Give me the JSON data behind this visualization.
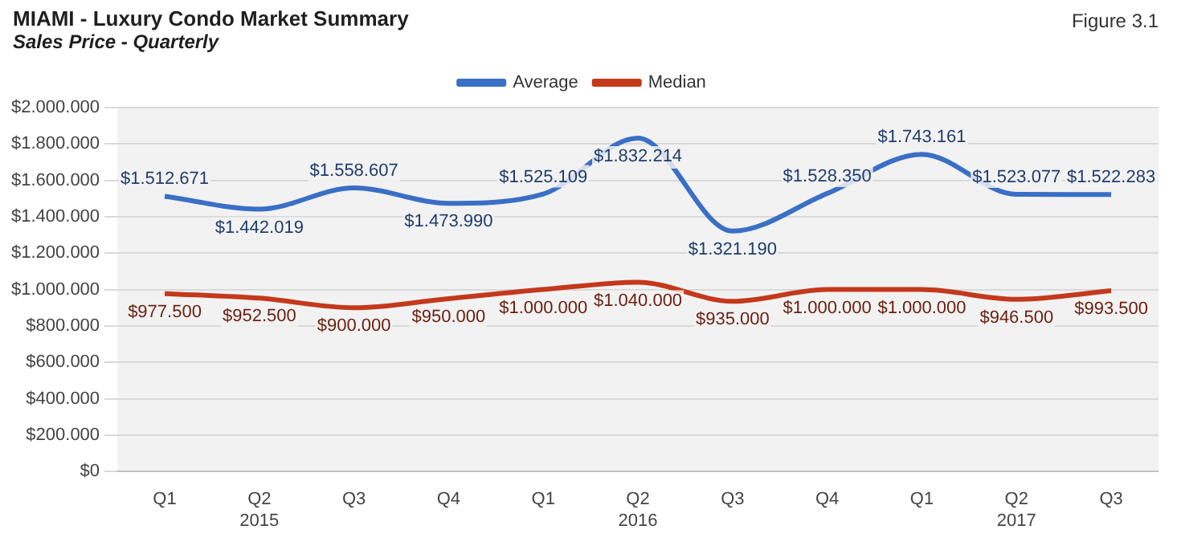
{
  "chart_data": {
    "type": "line",
    "title": "MIAMI - Luxury Condo Market Summary",
    "subtitle": "Sales Price - Quarterly",
    "annotations": [
      "Figure 3.1"
    ],
    "categories": [
      "Q1",
      "Q2\n2015",
      "Q3",
      "Q4",
      "Q1",
      "Q2\n2016",
      "Q3",
      "Q4",
      "Q1",
      "Q2\n2017",
      "Q3"
    ],
    "series": [
      {
        "name": "Average",
        "color": "#3a6fc6",
        "values": [
          1512671,
          1442019,
          1558607,
          1473990,
          1525109,
          1832214,
          1321190,
          1528350,
          1743161,
          1523077,
          1522283
        ],
        "value_labels": [
          "$1.512.671",
          "$1.442.019",
          "$1.558.607",
          "$1.473.990",
          "$1.525.109",
          "$1.832.214",
          "$1.321.190",
          "$1.528.350",
          "$1.743.161",
          "$1.523.077",
          "$1.522.283"
        ]
      },
      {
        "name": "Median",
        "color": "#c4391b",
        "values": [
          977500,
          952500,
          900000,
          950000,
          1000000,
          1040000,
          935000,
          1000000,
          1000000,
          946500,
          993500
        ],
        "value_labels": [
          "$977.500",
          "$952.500",
          "$900.000",
          "$950.000",
          "$1.000.000",
          "$1.040.000",
          "$935.000",
          "$1.000.000",
          "$1.000.000",
          "$946.500",
          "$993.500"
        ]
      }
    ],
    "ylim": [
      0,
      2000000
    ],
    "yticks": [
      {
        "value": 0,
        "label": "$0"
      },
      {
        "value": 200000,
        "label": "$200.000"
      },
      {
        "value": 400000,
        "label": "$400.000"
      },
      {
        "value": 600000,
        "label": "$600.000"
      },
      {
        "value": 800000,
        "label": "$800.000"
      },
      {
        "value": 1000000,
        "label": "$1.000.000"
      },
      {
        "value": 1200000,
        "label": "$1.200.000"
      },
      {
        "value": 1400000,
        "label": "$1.400.000"
      },
      {
        "value": 1600000,
        "label": "$1.600.000"
      },
      {
        "value": 1800000,
        "label": "$1.800.000"
      },
      {
        "value": 2000000,
        "label": "$2.000.000"
      }
    ],
    "grid": "y",
    "legend": "top",
    "marker": "none",
    "line_style": "solid"
  }
}
